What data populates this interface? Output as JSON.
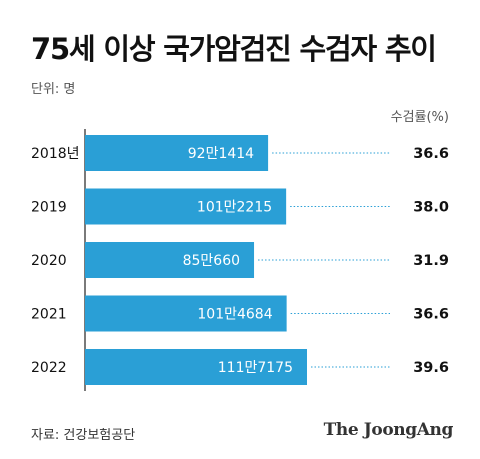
{
  "header": {
    "title": "75세 이상 국가암검진 수검자 추이",
    "unit": "단위: 명",
    "rate_header": "수검률(%)"
  },
  "footer": {
    "source": "자료: 건강보험공단",
    "logo_text": "The JoongAng"
  },
  "colors": {
    "bar": "#2a9fd6",
    "bar_label": "#ffffff",
    "leader_line": "#2a9fd6",
    "text": "#111111"
  },
  "chart_data": {
    "type": "bar",
    "orientation": "horizontal",
    "categories": [
      "2018년",
      "2019",
      "2020",
      "2021",
      "2022"
    ],
    "series": [
      {
        "values": [
          921414,
          1012215,
          850660,
          1014684,
          1117175
        ],
        "value_labels": [
          "92만1414",
          "101만2215",
          "85만660",
          "101만4684",
          "111만7175"
        ]
      }
    ],
    "rate": {
      "values": [
        36.6,
        38.0,
        31.9,
        36.6,
        39.6
      ],
      "value_labels": [
        "36.6",
        "38.0",
        "31.9",
        "36.6",
        "39.6"
      ]
    },
    "xlabel": "",
    "ylabel": "",
    "grid": false,
    "legend": "none"
  }
}
